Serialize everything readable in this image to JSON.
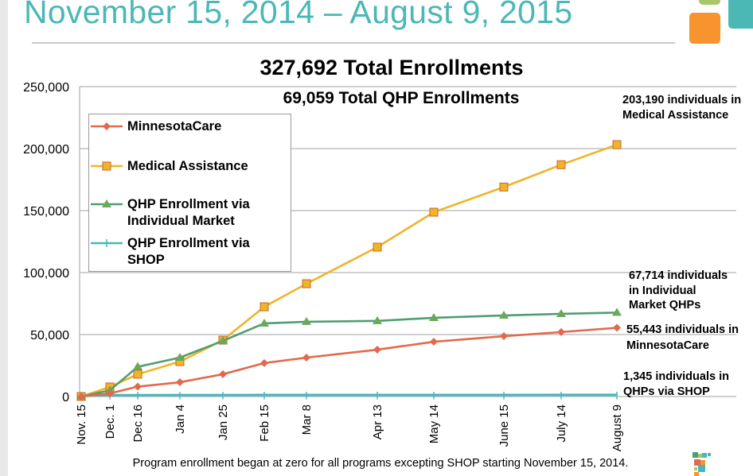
{
  "header": {
    "title": "November 15, 2014 – August 9, 2015"
  },
  "colors": {
    "title": "#4bb8b6",
    "minnesotacare": "#e2694d",
    "medical_assistance": "#f0b429",
    "qhp_individual": "#4f9e72",
    "qhp_shop": "#45b8bc",
    "deco_green": "#a9c66a",
    "deco_orange": "#f7942d",
    "deco_teal": "#4bb8b6"
  },
  "chart_data": {
    "type": "line",
    "title": "327,692 Total Enrollments",
    "subtitle": "69,059 Total QHP Enrollments",
    "xlabel": "",
    "ylabel": "",
    "ylim": [
      0,
      250000
    ],
    "yticks": [
      "0",
      "50,000",
      "100,000",
      "150,000",
      "200,000",
      "250,000"
    ],
    "categories": [
      "Nov. 15",
      "Dec. 1",
      "Dec 16",
      "Jan 4",
      "Jan 25",
      "Feb 15",
      "Mar 8",
      "Apr 13",
      "May 14",
      "June 15",
      "July 14",
      "August 9"
    ],
    "grid": true,
    "legend_position": "top-left",
    "series": [
      {
        "name": "MinnesotaCare",
        "marker": "diamond",
        "color_key": "minnesotacare",
        "values": [
          0,
          2500,
          8000,
          11500,
          18000,
          27000,
          31400,
          37800,
          44200,
          48700,
          52000,
          55443
        ]
      },
      {
        "name": "Medical Assistance",
        "marker": "square",
        "color_key": "medical_assistance",
        "values": [
          0,
          7700,
          18000,
          28200,
          45500,
          72400,
          91000,
          120500,
          148700,
          169000,
          187000,
          203190
        ]
      },
      {
        "name": "QHP Enrollment via Individual Market",
        "marker": "triangle",
        "color_key": "qhp_individual",
        "values": [
          0,
          5000,
          24000,
          31400,
          44900,
          59000,
          60300,
          61000,
          63500,
          65400,
          66700,
          67714
        ]
      },
      {
        "name": "QHP Enrollment via SHOP",
        "marker": "dash",
        "color_key": "qhp_shop",
        "values": [
          1000,
          1100,
          1150,
          1200,
          1200,
          1250,
          1250,
          1300,
          1300,
          1320,
          1330,
          1345
        ]
      }
    ],
    "annotations": [
      {
        "line1": "203,190 individuals in",
        "line2": "Medical Assistance"
      },
      {
        "line1": "67,714 individuals",
        "line2": "in Individual",
        "line3": "Market QHPs"
      },
      {
        "line1": "55,443 individuals in",
        "line2": "MinnesotaCare"
      },
      {
        "line1": "1,345 individuals in",
        "line2": "QHPs via SHOP"
      }
    ],
    "footnote": "Program enrollment began at zero for all programs excepting SHOP starting November 15, 2014."
  }
}
